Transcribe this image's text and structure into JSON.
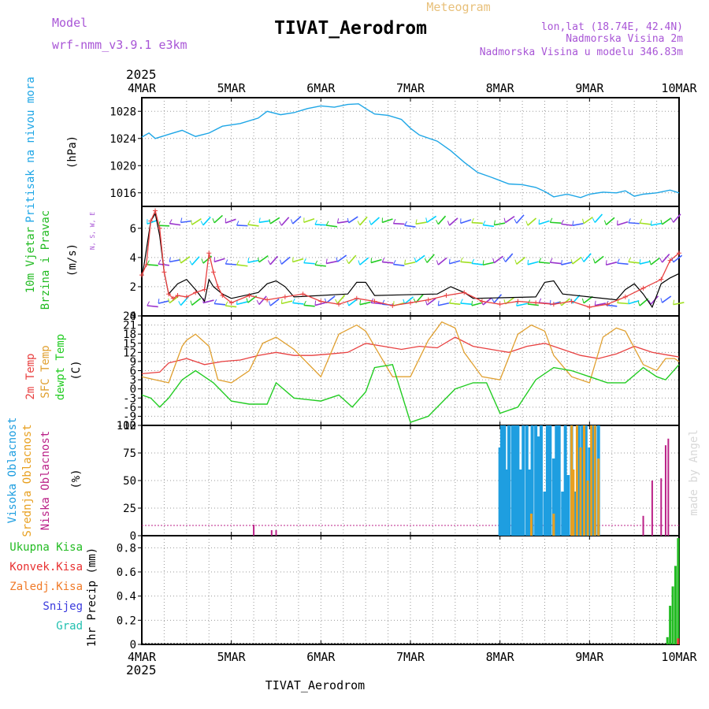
{
  "header": {
    "model_label": "Model",
    "model_name": "wrf-nmm_v3.9.1 e3km",
    "title": "TIVAT_Aerodrom",
    "meteogram_label": "Meteogram",
    "lonlat": "lon,lat (18.74E, 42.4N)",
    "elevation": "Nadmorska Visina 2m",
    "model_elevation": "Nadmorska Visina u modelu 346.83m",
    "year_top": "2025",
    "year_bottom": "2025",
    "footer": "TIVAT_Aerodrom",
    "credit": "made by Angel"
  },
  "colors": {
    "pressure": "#1ea6e6",
    "wind_green": "#22cc22",
    "wind_purple": "#9933cc",
    "temp2m": "#e84040",
    "sfctemp": "#e0a030",
    "dewpoint": "#22cc22",
    "cloud_high": "#1e9ee0",
    "cloud_mid": "#e8a020",
    "cloud_low": "#bb2288",
    "precip_total": "#22bb22",
    "precip_conv": "#e83030",
    "precip_frz": "#f07a28",
    "precip_snow": "#3a3add",
    "precip_graup": "#22c0b0"
  },
  "chart_data": [
    {
      "type": "line",
      "title": "Pritisak na nivou mora",
      "ylabel": "(hPa)",
      "categories": [
        "4MAR",
        "5MAR",
        "6MAR",
        "7MAR",
        "8MAR",
        "9MAR",
        "10MAR"
      ],
      "x_range_days": [
        0,
        6
      ],
      "ylim": [
        1014,
        1030
      ],
      "yticks": [
        "1016",
        "1020",
        "1024",
        "1028"
      ],
      "series": [
        {
          "name": "MSLP",
          "x": [
            0,
            0.08,
            0.15,
            0.3,
            0.45,
            0.6,
            0.75,
            0.9,
            1.1,
            1.3,
            1.4,
            1.55,
            1.7,
            1.85,
            2.0,
            2.15,
            2.3,
            2.42,
            2.5,
            2.6,
            2.75,
            2.9,
            3.0,
            3.1,
            3.3,
            3.45,
            3.6,
            3.75,
            3.9,
            4.0,
            4.1,
            4.25,
            4.4,
            4.5,
            4.6,
            4.75,
            4.9,
            5.0,
            5.15,
            5.3,
            5.4,
            5.5,
            5.6,
            5.75,
            5.9,
            6.0
          ],
          "values": [
            1024.2,
            1024.8,
            1024.0,
            1024.6,
            1025.2,
            1024.3,
            1024.8,
            1025.8,
            1026.2,
            1027.0,
            1028.0,
            1027.5,
            1027.8,
            1028.4,
            1028.8,
            1028.6,
            1029.0,
            1029.1,
            1028.4,
            1027.6,
            1027.4,
            1026.8,
            1025.5,
            1024.5,
            1023.6,
            1022.2,
            1020.5,
            1019.0,
            1018.3,
            1017.8,
            1017.3,
            1017.2,
            1016.8,
            1016.2,
            1015.4,
            1015.8,
            1015.3,
            1015.8,
            1016.1,
            1016.0,
            1016.3,
            1015.5,
            1015.8,
            1016.0,
            1016.4,
            1016.0
          ]
        }
      ]
    },
    {
      "type": "line",
      "title": "10m Vjetar",
      "subtitle": "Brzina i Pravac",
      "ylabel": "(m/s)",
      "compass": "N, S, W, E",
      "ylim": [
        0,
        7.5
      ],
      "yticks": [
        "0",
        "2",
        "4",
        "6"
      ],
      "barb_rows": [
        6.3,
        3.6,
        0.8
      ],
      "series": [
        {
          "name": "Brzina",
          "x": [
            0,
            0.05,
            0.1,
            0.15,
            0.2,
            0.25,
            0.3,
            0.35,
            0.4,
            0.5,
            0.6,
            0.7,
            0.75,
            0.8,
            0.85,
            0.9,
            1.0,
            1.2,
            1.4,
            1.6,
            1.8,
            2.0,
            2.2,
            2.4,
            2.6,
            2.8,
            3.0,
            3.2,
            3.4,
            3.6,
            3.8,
            4.0,
            4.2,
            4.4,
            4.6,
            4.8,
            5.0,
            5.2,
            5.4,
            5.6,
            5.8,
            5.9,
            6.0
          ],
          "values": [
            2.8,
            3.5,
            6.5,
            7.2,
            6.0,
            3.0,
            1.5,
            1.2,
            1.4,
            1.3,
            1.6,
            1.8,
            4.3,
            3.0,
            2.0,
            1.4,
            0.9,
            1.4,
            1.1,
            1.3,
            1.5,
            1.0,
            0.8,
            1.2,
            1.0,
            0.7,
            0.9,
            1.1,
            1.4,
            1.6,
            1.0,
            0.8,
            1.0,
            0.9,
            0.8,
            1.0,
            0.6,
            0.8,
            1.3,
            1.9,
            2.5,
            3.8,
            4.3
          ]
        },
        {
          "name": "Udar",
          "x": [
            0,
            0.1,
            0.15,
            0.2,
            0.25,
            0.3,
            0.4,
            0.5,
            0.6,
            0.7,
            0.75,
            0.8,
            0.9,
            1.0,
            1.3,
            1.4,
            1.5,
            1.6,
            1.7,
            2.3,
            2.4,
            2.5,
            2.6,
            3.3,
            3.45,
            3.6,
            3.7,
            4.4,
            4.5,
            4.6,
            4.7,
            5.3,
            5.4,
            5.5,
            5.6,
            5.7,
            5.8,
            5.9,
            6.0
          ],
          "values": [
            2.5,
            6.5,
            7.0,
            5.5,
            3.0,
            1.5,
            2.2,
            2.5,
            1.8,
            1.0,
            2.5,
            2.0,
            1.5,
            1.2,
            1.6,
            2.2,
            2.4,
            2.0,
            1.3,
            1.5,
            2.3,
            2.3,
            1.4,
            1.5,
            2.0,
            1.6,
            1.2,
            1.3,
            2.3,
            2.4,
            1.5,
            1.1,
            1.8,
            2.2,
            1.5,
            0.6,
            2.2,
            2.6,
            2.9
          ]
        }
      ]
    },
    {
      "type": "line",
      "titles": [
        "2m Temp",
        "SFC Temp",
        "dewpt Temp"
      ],
      "ylabel": "(C)",
      "ylim": [
        -12,
        24
      ],
      "yticks": [
        "-12",
        "-9",
        "-6",
        "-3",
        "0",
        "3",
        "6",
        "9",
        "12",
        "15",
        "18",
        "21",
        "24"
      ],
      "series": [
        {
          "name": "2m Temp",
          "x": [
            0,
            0.2,
            0.3,
            0.5,
            0.7,
            0.9,
            1.1,
            1.3,
            1.5,
            1.7,
            1.9,
            2.1,
            2.3,
            2.5,
            2.7,
            2.9,
            3.1,
            3.3,
            3.5,
            3.7,
            3.9,
            4.1,
            4.3,
            4.5,
            4.7,
            4.9,
            5.1,
            5.3,
            5.5,
            5.7,
            5.9,
            6.0
          ],
          "values": [
            5,
            5.5,
            8.5,
            10,
            8,
            9,
            9.5,
            11,
            12,
            11,
            11,
            11.5,
            12,
            15,
            14,
            13,
            14,
            13.5,
            17,
            14,
            13,
            12,
            14,
            15,
            13,
            11,
            10,
            11.5,
            14,
            12,
            11,
            10.5
          ]
        },
        {
          "name": "SFC Temp",
          "x": [
            0,
            0.15,
            0.3,
            0.45,
            0.5,
            0.6,
            0.75,
            0.85,
            1.0,
            1.2,
            1.35,
            1.5,
            1.7,
            2.0,
            2.2,
            2.4,
            2.5,
            2.6,
            2.8,
            3.0,
            3.2,
            3.35,
            3.5,
            3.6,
            3.8,
            4.0,
            4.2,
            4.35,
            4.5,
            4.6,
            4.8,
            5.0,
            5.15,
            5.3,
            5.4,
            5.6,
            5.75,
            5.85,
            5.95,
            6.0
          ],
          "values": [
            4,
            3,
            2,
            14,
            16,
            18,
            14,
            3,
            2,
            6,
            15,
            17,
            13,
            4,
            18,
            21,
            19,
            14,
            4,
            4,
            16,
            22,
            20,
            12,
            4,
            3,
            18,
            21,
            19,
            11,
            4,
            2,
            17,
            20,
            19,
            8,
            6,
            10,
            10,
            9
          ]
        },
        {
          "name": "dewpt Temp",
          "x": [
            0,
            0.1,
            0.2,
            0.3,
            0.45,
            0.6,
            0.8,
            1.0,
            1.2,
            1.4,
            1.5,
            1.7,
            2.0,
            2.2,
            2.35,
            2.5,
            2.6,
            2.8,
            3.0,
            3.2,
            3.5,
            3.7,
            3.85,
            4.0,
            4.2,
            4.4,
            4.6,
            4.8,
            5.0,
            5.2,
            5.4,
            5.6,
            5.75,
            5.85,
            6.0
          ],
          "values": [
            -2,
            -3,
            -6,
            -3,
            3,
            6,
            2,
            -4,
            -5,
            -5,
            2,
            -3,
            -4,
            -2,
            -6,
            -1,
            7,
            8,
            -11,
            -9,
            0,
            2,
            2,
            -8,
            -6,
            3,
            7,
            6,
            4,
            2,
            2,
            7,
            4,
            3,
            8
          ]
        }
      ]
    },
    {
      "type": "bar",
      "titles": [
        "Visoka Oblacnost",
        "Srednja Oblacnost",
        "Niska Oblacnost"
      ],
      "ylabel": "(%)",
      "ylim": [
        0,
        100
      ],
      "yticks": [
        "0",
        "25",
        "50",
        "75",
        "100"
      ],
      "series": [
        {
          "name": "Visoka",
          "x": [
            4.0,
            4.02,
            4.05,
            4.08,
            4.1,
            4.14,
            4.17,
            4.2,
            4.23,
            4.26,
            4.3,
            4.33,
            4.36,
            4.4,
            4.43,
            4.46,
            4.5,
            4.53,
            4.56,
            4.6,
            4.63,
            4.66,
            4.7,
            4.73,
            4.76,
            4.8,
            4.84,
            4.88,
            4.92,
            4.96,
            5.0,
            5.03,
            5.06,
            5.1
          ],
          "values": [
            80,
            100,
            100,
            60,
            100,
            100,
            100,
            100,
            60,
            100,
            100,
            60,
            100,
            100,
            90,
            100,
            40,
            100,
            100,
            70,
            100,
            100,
            40,
            100,
            55,
            100,
            40,
            100,
            100,
            100,
            80,
            100,
            100,
            100
          ]
        },
        {
          "name": "Srednja",
          "x": [
            4.35,
            4.6,
            4.8,
            4.82,
            4.86,
            4.9,
            4.94,
            4.98,
            5.02,
            5.06,
            5.1
          ],
          "values": [
            20,
            20,
            100,
            60,
            100,
            80,
            100,
            50,
            100,
            100,
            70
          ]
        },
        {
          "name": "Niska",
          "x": [
            1.25,
            1.45,
            1.5,
            5.6,
            5.7,
            5.8,
            5.85,
            5.88
          ],
          "values": [
            10,
            5,
            5,
            18,
            50,
            52,
            82,
            88
          ]
        }
      ]
    },
    {
      "type": "bar",
      "titles": [
        "Ukupna Kisa",
        "Konvek.Kisa",
        "Zaledj.Kisa",
        "Snijeg",
        "Grad"
      ],
      "ylabel": "1hr Precip (mm)",
      "ylim": [
        0,
        0.9
      ],
      "yticks": [
        "0",
        "0.2",
        "0.4",
        "0.6",
        "0.8"
      ],
      "series": [
        {
          "name": "Ukupna Kisa",
          "x": [
            5.87,
            5.9,
            5.93,
            5.96,
            5.99
          ],
          "values": [
            0.06,
            0.32,
            0.48,
            0.65,
            0.88
          ]
        },
        {
          "name": "Konvek.Kisa",
          "x": [
            5.99
          ],
          "values": [
            0.05
          ]
        }
      ],
      "xlabels": [
        "4MAR",
        "5MAR",
        "6MAR",
        "7MAR",
        "8MAR",
        "9MAR",
        "10MAR"
      ]
    }
  ]
}
